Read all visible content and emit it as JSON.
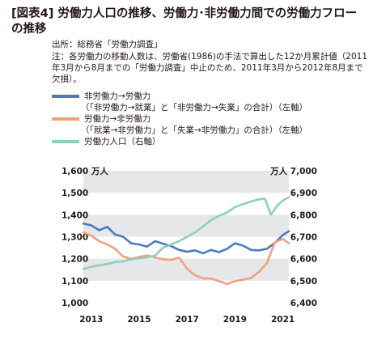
{
  "header": {
    "title": "[図表4]労働力人口の推移、労働力･非労働力間でのの労働力フローの推移",
    "title_display": "[図表4] 労働力人口の推移、労働力･非労働力間での労働力フローの推移",
    "source": "出所：総務省「労働力調査」",
    "note": "注：各労働力の移動人数は、労働省(1986)の手法で算出した12か月累計値（2011年3月から8月までの「労働力調査」中止のため、2011年3月から2012年8月まで欠損）。"
  },
  "legend": [
    {
      "label": "非労働力→労働力",
      "sub": "（「非労働力→就業」と「非労働力→失業」の合計）（左軸）",
      "color": "#4a7cc0"
    },
    {
      "label": "労働力→非労働力",
      "sub": "（「就業→非労働力」と「失業→非労働力」の合計）（左軸）",
      "color": "#f0a07c"
    },
    {
      "label": "労働力人口（右軸）",
      "sub": "",
      "color": "#8ecfbe"
    }
  ],
  "chart_data": {
    "type": "line",
    "x_ticks": [
      "2013",
      "2015",
      "2017",
      "2019",
      "2021"
    ],
    "x_range": [
      2012.67,
      2021.25
    ],
    "left_axis": {
      "unit": "万人",
      "range": [
        1000,
        1600
      ],
      "ticks": [
        "1,000",
        "1,100",
        "1,200",
        "1,300",
        "1,400",
        "1,500",
        "1,600"
      ]
    },
    "right_axis": {
      "unit": "万人",
      "range": [
        6400,
        7000
      ],
      "ticks": [
        "6,400",
        "6,500",
        "6,600",
        "6,700",
        "6,800",
        "6,900",
        "7,000"
      ]
    },
    "bands": "alternating gray bands every 100 (left axis)",
    "series": [
      {
        "name": "非労働力→労働力",
        "axis": "left",
        "color": "#4a7cc0",
        "x": [
          2012.67,
          2013.0,
          2013.33,
          2013.67,
          2014.0,
          2014.33,
          2014.67,
          2015.0,
          2015.33,
          2015.67,
          2016.0,
          2016.33,
          2016.67,
          2017.0,
          2017.33,
          2017.67,
          2018.0,
          2018.33,
          2018.67,
          2019.0,
          2019.33,
          2019.67,
          2020.0,
          2020.33,
          2020.67,
          2021.0,
          2021.25
        ],
        "y": [
          1360,
          1352,
          1330,
          1345,
          1310,
          1300,
          1270,
          1265,
          1255,
          1280,
          1268,
          1258,
          1240,
          1232,
          1238,
          1225,
          1240,
          1230,
          1245,
          1270,
          1260,
          1240,
          1238,
          1245,
          1272,
          1308,
          1325
        ]
      },
      {
        "name": "労働力→非労働力",
        "axis": "left",
        "color": "#f0a07c",
        "x": [
          2012.67,
          2013.0,
          2013.33,
          2013.67,
          2014.0,
          2014.33,
          2014.67,
          2015.0,
          2015.33,
          2015.67,
          2016.0,
          2016.33,
          2016.67,
          2017.0,
          2017.33,
          2017.67,
          2018.0,
          2018.33,
          2018.67,
          2019.0,
          2019.33,
          2019.67,
          2020.0,
          2020.33,
          2020.67,
          2021.0,
          2021.25
        ],
        "y": [
          1320,
          1305,
          1280,
          1265,
          1245,
          1210,
          1200,
          1208,
          1215,
          1205,
          1198,
          1195,
          1205,
          1155,
          1125,
          1110,
          1110,
          1098,
          1085,
          1098,
          1105,
          1112,
          1140,
          1180,
          1275,
          1290,
          1270
        ]
      },
      {
        "name": "労働力人口",
        "axis": "right",
        "color": "#8ecfbe",
        "x": [
          2012.67,
          2013.0,
          2013.33,
          2013.67,
          2014.0,
          2014.33,
          2014.67,
          2015.0,
          2015.33,
          2015.67,
          2016.0,
          2016.33,
          2016.67,
          2017.0,
          2017.33,
          2017.67,
          2018.0,
          2018.33,
          2018.67,
          2019.0,
          2019.33,
          2019.67,
          2020.0,
          2020.25,
          2020.5,
          2020.75,
          2021.0,
          2021.25
        ],
        "y": [
          6553,
          6563,
          6570,
          6576,
          6585,
          6588,
          6598,
          6602,
          6605,
          6615,
          6650,
          6665,
          6680,
          6700,
          6720,
          6748,
          6775,
          6795,
          6810,
          6835,
          6848,
          6860,
          6870,
          6873,
          6800,
          6840,
          6865,
          6880
        ]
      }
    ]
  }
}
